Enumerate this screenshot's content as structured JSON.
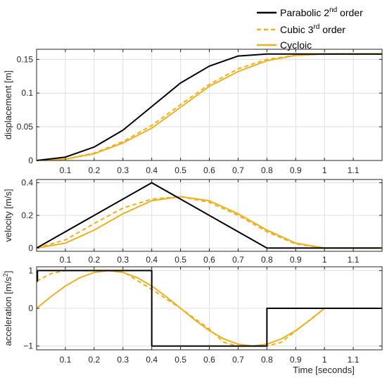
{
  "legend": {
    "entries": [
      {
        "name": "Parabolic 2",
        "sup": "nd",
        "tail": " order",
        "color": "#000000",
        "dash": "solid"
      },
      {
        "name": "Cubic 3",
        "sup": "rd",
        "tail": " order",
        "color": "#EDB120",
        "dash": "dashed"
      },
      {
        "name": "Cycloic",
        "sup": "",
        "tail": "",
        "color": "#EDB120",
        "dash": "solid"
      }
    ]
  },
  "colors": {
    "parabolic": "#000000",
    "cubic": "#EDB120",
    "cycloic": "#EDB120",
    "grid": "#dfdfdf",
    "axis": "#262626"
  },
  "chart_data": [
    {
      "type": "line",
      "ylabel": "displacement [m]",
      "xlabel": "",
      "xlim": [
        0,
        1.2
      ],
      "ylim": [
        0,
        0.165
      ],
      "xticks": [
        0.1,
        0.2,
        0.3,
        0.4,
        0.5,
        0.6,
        0.7,
        0.8,
        0.9,
        1,
        1.1
      ],
      "xtick_labels": [
        "0.1",
        "0.2",
        "0.3",
        "0.4",
        "0.5",
        "0.6",
        "0.7",
        "0.8",
        "0.9",
        "1",
        "1.1"
      ],
      "yticks": [
        0,
        0.05,
        0.1,
        0.15
      ],
      "ytick_labels": [
        "0",
        "0.05",
        "0.1",
        "0.15"
      ],
      "grid": true,
      "series": [
        {
          "name": "Parabolic 2nd order",
          "style": "solid",
          "x": [
            0,
            0.1,
            0.2,
            0.3,
            0.4,
            0.5,
            0.6,
            0.7,
            0.8,
            1.2
          ],
          "y": [
            0,
            0.005,
            0.02,
            0.045,
            0.08,
            0.115,
            0.14,
            0.155,
            0.158,
            0.158
          ]
        },
        {
          "name": "Cubic 3rd order",
          "style": "dashed",
          "x": [
            0,
            0.1,
            0.2,
            0.3,
            0.4,
            0.5,
            0.6,
            0.7,
            0.8,
            0.9,
            1.0,
            1.2
          ],
          "y": [
            0,
            0.002,
            0.011,
            0.028,
            0.052,
            0.083,
            0.113,
            0.136,
            0.15,
            0.156,
            0.158,
            0.158
          ]
        },
        {
          "name": "Cycloic",
          "style": "solid",
          "x": [
            0,
            0.1,
            0.2,
            0.3,
            0.4,
            0.5,
            0.6,
            0.7,
            0.8,
            0.9,
            1.0,
            1.2
          ],
          "y": [
            0,
            0.002,
            0.01,
            0.026,
            0.048,
            0.079,
            0.11,
            0.132,
            0.148,
            0.156,
            0.158,
            0.158
          ]
        }
      ]
    },
    {
      "type": "line",
      "ylabel": "velocity [m/s]",
      "xlabel": "",
      "xlim": [
        0,
        1.2
      ],
      "ylim": [
        -0.02,
        0.42
      ],
      "xticks": [
        0.1,
        0.2,
        0.3,
        0.4,
        0.5,
        0.6,
        0.7,
        0.8,
        0.9,
        1,
        1.1
      ],
      "xtick_labels": [
        "0.1",
        "0.2",
        "0.3",
        "0.4",
        "0.5",
        "0.6",
        "0.7",
        "0.8",
        "0.9",
        "1",
        "1.1"
      ],
      "yticks": [
        0,
        0.2,
        0.4
      ],
      "ytick_labels": [
        "0",
        "0.2",
        "0.4"
      ],
      "grid": true,
      "series": [
        {
          "name": "Parabolic 2nd order",
          "style": "solid",
          "x": [
            0,
            0.4,
            0.8,
            1.2
          ],
          "y": [
            0,
            0.4,
            0,
            0
          ]
        },
        {
          "name": "Cubic 3rd order",
          "style": "dashed",
          "x": [
            0,
            0.1,
            0.2,
            0.3,
            0.4,
            0.5,
            0.6,
            0.7,
            0.8,
            0.9,
            1.0,
            1.2
          ],
          "y": [
            0,
            0.05,
            0.15,
            0.245,
            0.3,
            0.315,
            0.28,
            0.2,
            0.1,
            0.025,
            0,
            0
          ]
        },
        {
          "name": "Cycloic",
          "style": "solid",
          "x": [
            0,
            0.1,
            0.2,
            0.3,
            0.4,
            0.5,
            0.6,
            0.7,
            0.8,
            0.9,
            1.0,
            1.2
          ],
          "y": [
            0,
            0.03,
            0.11,
            0.21,
            0.29,
            0.315,
            0.29,
            0.21,
            0.11,
            0.03,
            0,
            0
          ]
        }
      ]
    },
    {
      "type": "line",
      "ylabel": "acceleration [m/s",
      "ylabel_sup": "2",
      "ylabel_tail": "]",
      "xlabel": "Time [seconds]",
      "xlim": [
        0,
        1.2
      ],
      "ylim": [
        -1.1,
        1.1
      ],
      "xticks": [
        0.1,
        0.2,
        0.3,
        0.4,
        0.5,
        0.6,
        0.7,
        0.8,
        0.9,
        1,
        1.1
      ],
      "xtick_labels": [
        "0.1",
        "0.2",
        "0.3",
        "0.4",
        "0.5",
        "0.6",
        "0.7",
        "0.8",
        "0.9",
        "1",
        "1.1"
      ],
      "yticks": [
        -1,
        0,
        1
      ],
      "ytick_labels": [
        "−1",
        "0",
        "1"
      ],
      "grid": true,
      "series": [
        {
          "name": "Parabolic 2nd order",
          "style": "solid",
          "x": [
            0,
            0.003,
            0.003,
            0.4,
            0.4,
            0.8,
            0.8,
            1.2
          ],
          "y": [
            0.72,
            0.72,
            1,
            1,
            -1,
            -1,
            0,
            0
          ]
        },
        {
          "name": "Cubic 3rd order",
          "style": "dashed",
          "x": [
            0,
            0.05,
            0.1,
            0.15,
            0.2,
            0.25,
            0.3,
            0.4,
            0.5,
            0.6,
            0.65,
            0.7,
            0.75,
            0.8,
            0.85,
            0.9,
            1.0,
            1.2
          ],
          "y": [
            0.72,
            0.92,
            1,
            1,
            1,
            1,
            0.97,
            0.5,
            0,
            -0.55,
            -0.9,
            -1,
            -1,
            -1,
            -0.9,
            -0.6,
            0,
            0
          ]
        },
        {
          "name": "Cycloic",
          "style": "solid",
          "x": [
            0,
            0.05,
            0.1,
            0.15,
            0.2,
            0.25,
            0.3,
            0.35,
            0.4,
            0.45,
            0.5,
            0.55,
            0.6,
            0.65,
            0.7,
            0.75,
            0.8,
            0.85,
            0.9,
            0.95,
            1.0,
            1.2
          ],
          "y": [
            0,
            0.31,
            0.59,
            0.81,
            0.95,
            1,
            0.95,
            0.81,
            0.59,
            0.31,
            0,
            -0.31,
            -0.59,
            -0.81,
            -0.95,
            -1,
            -0.95,
            -0.81,
            -0.59,
            -0.31,
            0,
            0
          ]
        }
      ]
    }
  ]
}
